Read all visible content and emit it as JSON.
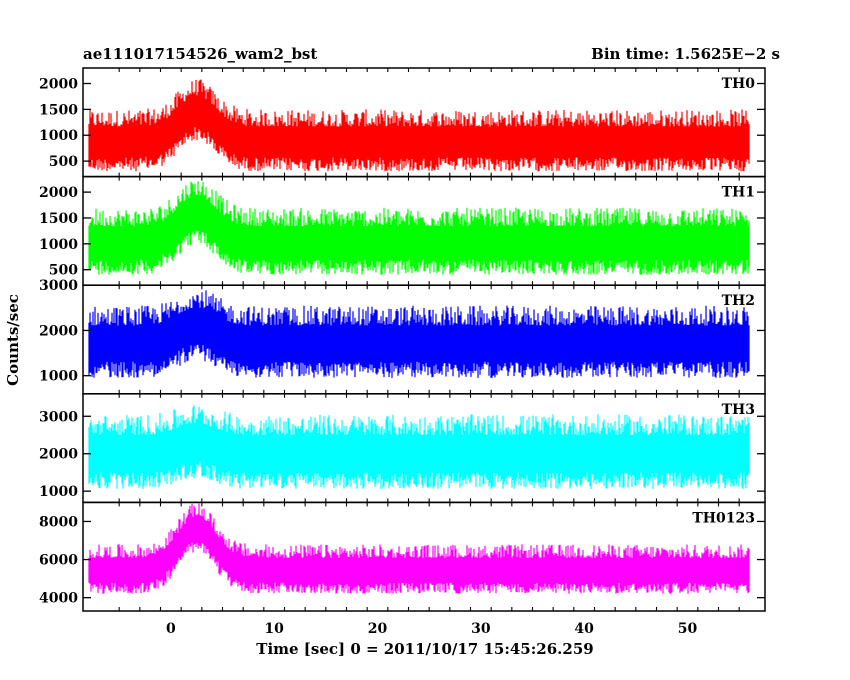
{
  "chart_data": {
    "type": "line",
    "title_left": "ae111017154526_wam2_bst",
    "title_right": "Bin time: 1.5625E−2 s",
    "xlabel": "Time [sec] 0 = 2011/10/17 15:45:26.259",
    "ylabel": "Counts/sec",
    "xlim": [
      -8.5,
      57.5
    ],
    "x_ticks": [
      0,
      10,
      20,
      30,
      40,
      50
    ],
    "x_range": [
      -8,
      56
    ],
    "grid": false,
    "panels": [
      {
        "name": "TH0",
        "color": "#ff0000",
        "ylim": [
          200,
          2300
        ],
        "yticks": [
          500,
          1000,
          1500,
          2000
        ],
        "baseline": 900,
        "noise": 600,
        "burst_peak": 600,
        "burst_center": 2.5,
        "burst_width": 2.5
      },
      {
        "name": "TH1",
        "color": "#00ff00",
        "ylim": [
          200,
          2300
        ],
        "yticks": [
          500,
          1000,
          1500,
          2000
        ],
        "baseline": 1050,
        "noise": 650,
        "burst_peak": 600,
        "burst_center": 2.5,
        "burst_width": 2.5
      },
      {
        "name": "TH2",
        "color": "#0000ff",
        "ylim": [
          600,
          3000
        ],
        "yticks": [
          1000,
          2000,
          3000
        ],
        "baseline": 1750,
        "noise": 800,
        "burst_peak": 400,
        "burst_center": 2.5,
        "burst_width": 2.5
      },
      {
        "name": "TH3",
        "color": "#00ffff",
        "ylim": [
          700,
          3600
        ],
        "yticks": [
          1000,
          2000,
          3000
        ],
        "baseline": 2050,
        "noise": 1000,
        "burst_peak": 300,
        "burst_center": 2.5,
        "burst_width": 2.5
      },
      {
        "name": "TH0123",
        "color": "#ff00ff",
        "ylim": [
          3300,
          9000
        ],
        "yticks": [
          4000,
          6000,
          8000
        ],
        "baseline": 5500,
        "noise": 1300,
        "burst_peak": 2200,
        "burst_center": 2.5,
        "burst_width": 2.5
      }
    ]
  }
}
